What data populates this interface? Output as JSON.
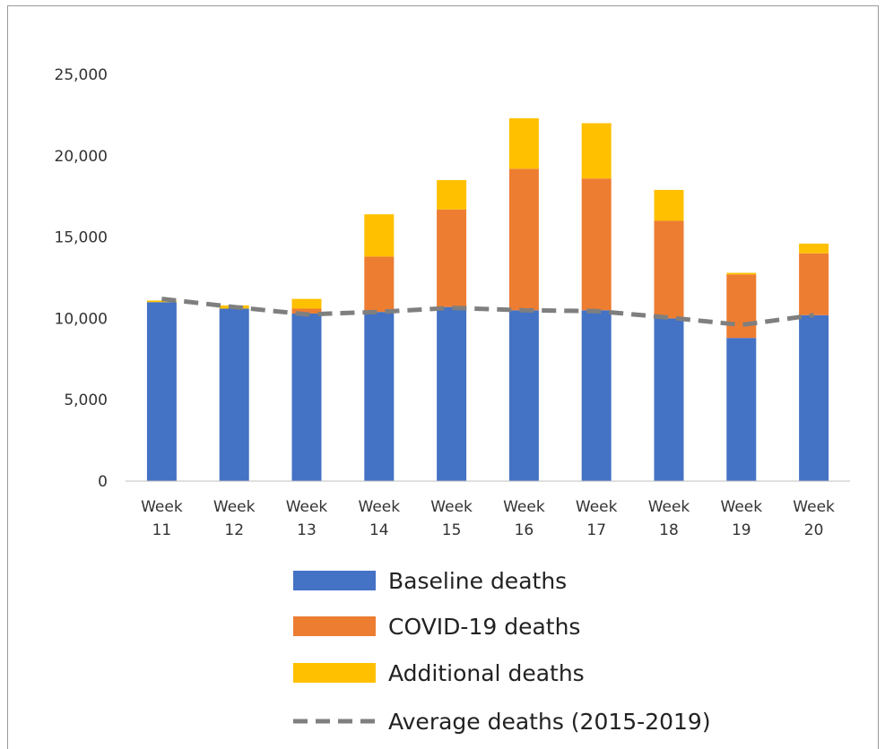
{
  "chart_data": {
    "type": "bar",
    "stacked": true,
    "categories": [
      "Week 11",
      "Week 12",
      "Week 13",
      "Week 14",
      "Week 15",
      "Week 16",
      "Week 17",
      "Week 18",
      "Week 19",
      "Week 20"
    ],
    "category_lines": [
      [
        "Week",
        "11"
      ],
      [
        "Week",
        "12"
      ],
      [
        "Week",
        "13"
      ],
      [
        "Week",
        "14"
      ],
      [
        "Week",
        "15"
      ],
      [
        "Week",
        "16"
      ],
      [
        "Week",
        "17"
      ],
      [
        "Week",
        "18"
      ],
      [
        "Week",
        "19"
      ],
      [
        "Week",
        "20"
      ]
    ],
    "series": [
      {
        "name": "Baseline deaths",
        "color": "#4472C4",
        "values": [
          11000,
          10600,
          10300,
          10400,
          10700,
          10500,
          10500,
          10000,
          8800,
          10200
        ]
      },
      {
        "name": "COVID-19 deaths",
        "color": "#ED7D31",
        "values": [
          0,
          0,
          300,
          3400,
          6000,
          8700,
          8100,
          6000,
          3900,
          3800
        ]
      },
      {
        "name": "Additional deaths",
        "color": "#FFC000",
        "values": [
          100,
          200,
          600,
          2600,
          1800,
          3100,
          3400,
          1900,
          100,
          600
        ]
      }
    ],
    "line_series": {
      "name": "Average deaths (2015-2019)",
      "color": "#7f7f7f",
      "values": [
        11200,
        10700,
        10250,
        10400,
        10650,
        10500,
        10450,
        10050,
        9600,
        10200
      ]
    },
    "ylim": [
      0,
      25000
    ],
    "yticks": [
      0,
      5000,
      10000,
      15000,
      20000,
      25000
    ],
    "ytick_labels": [
      "0",
      "5,000",
      "10,000",
      "15,000",
      "20,000",
      "25,000"
    ],
    "legend_position": "bottom",
    "grid": false
  }
}
